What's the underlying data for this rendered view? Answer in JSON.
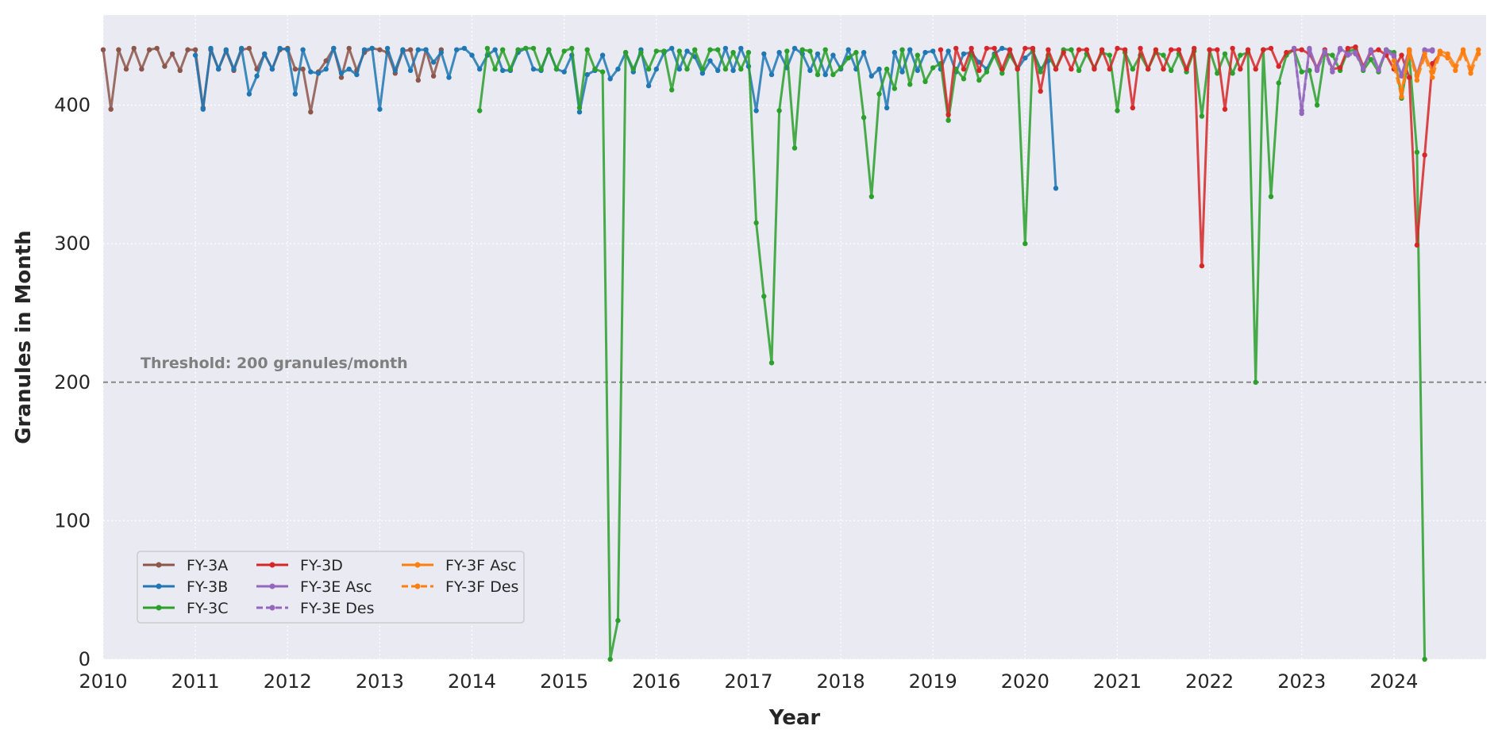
{
  "chart_data": {
    "type": "line",
    "xlabel": "Year",
    "ylabel": "Granules in Month",
    "xlim": [
      2010,
      2025
    ],
    "ylim": [
      0,
      465
    ],
    "x_ticks": [
      "2010",
      "2011",
      "2012",
      "2013",
      "2014",
      "2015",
      "2016",
      "2017",
      "2018",
      "2019",
      "2020",
      "2021",
      "2022",
      "2023",
      "2024"
    ],
    "y_ticks": [
      "0",
      "100",
      "200",
      "300",
      "400"
    ],
    "grid": true,
    "legend_position": "lower-left",
    "threshold": {
      "value": 200,
      "label": "Threshold: 200 granules/month",
      "color": "#888888"
    },
    "series": [
      {
        "name": "FY-3A",
        "color": "#8c564b",
        "dashed": false,
        "start": "2010-01",
        "values": [
          440,
          397,
          440,
          426,
          441,
          426,
          440,
          441,
          428,
          437,
          425,
          440,
          440,
          398,
          440,
          426,
          439,
          425,
          440,
          441,
          426,
          437,
          426,
          440,
          441,
          426,
          426,
          395,
          424,
          432,
          441,
          420,
          441,
          425,
          438,
          441,
          440,
          438,
          423,
          439,
          440,
          418,
          440,
          421,
          440
        ]
      },
      {
        "name": "FY-3B",
        "color": "#1f77b4",
        "dashed": false,
        "start": "2011-01",
        "values": [
          436,
          397,
          441,
          426,
          440,
          426,
          441,
          408,
          421,
          437,
          426,
          441,
          440,
          408,
          440,
          424,
          423,
          426,
          441,
          423,
          426,
          422,
          440,
          441,
          397,
          441,
          425,
          440,
          425,
          440,
          440,
          431,
          438,
          420,
          440,
          441,
          436,
          426,
          436,
          440,
          425,
          425,
          438,
          441,
          426,
          425,
          440,
          426,
          424,
          436,
          395,
          422,
          425,
          436,
          419,
          426,
          438,
          424,
          440,
          414,
          426,
          438,
          441,
          426,
          439,
          435,
          423,
          432,
          425,
          441,
          425,
          441,
          428,
          396,
          437,
          422,
          438,
          427,
          441,
          437,
          425,
          437,
          422,
          436,
          426,
          440,
          426,
          438,
          421,
          426,
          398,
          438,
          424,
          440,
          425,
          438,
          439,
          426,
          439,
          424,
          437,
          438,
          431,
          426,
          437,
          441,
          440,
          426,
          434,
          439,
          426,
          432,
          340
        ]
      },
      {
        "name": "FY-3C",
        "color": "#2ca02c",
        "dashed": false,
        "start": "2014-02",
        "values": [
          396,
          441,
          426,
          440,
          426,
          440,
          441,
          441,
          426,
          440,
          426,
          439,
          441,
          398,
          440,
          426,
          424,
          0,
          28,
          438,
          426,
          438,
          426,
          439,
          439,
          411,
          439,
          426,
          440,
          426,
          440,
          440,
          426,
          438,
          426,
          438,
          315,
          262,
          214,
          396,
          439,
          369,
          440,
          439,
          422,
          440,
          422,
          427,
          434,
          438,
          391,
          334,
          408,
          426,
          412,
          440,
          415,
          436,
          417,
          427,
          430,
          389,
          426,
          419,
          436,
          418,
          424,
          436,
          423,
          436,
          427,
          300,
          439,
          424,
          436,
          426,
          440,
          440,
          425,
          437,
          427,
          438,
          436,
          396,
          438,
          426,
          436,
          426,
          438,
          436,
          425,
          437,
          424,
          439,
          392,
          440,
          423,
          437,
          423,
          436,
          438,
          200,
          440,
          334,
          416,
          436,
          440,
          424,
          425,
          400,
          437,
          436,
          425,
          439,
          440,
          425,
          433,
          424,
          440,
          438,
          405,
          436,
          366,
          0
        ]
      },
      {
        "name": "FY-3D",
        "color": "#d62728",
        "dashed": false,
        "start": "2019-02",
        "values": [
          440,
          393,
          441,
          426,
          441,
          425,
          441,
          441,
          426,
          440,
          426,
          441,
          441,
          410,
          440,
          426,
          438,
          426,
          440,
          440,
          426,
          440,
          426,
          441,
          440,
          398,
          441,
          426,
          440,
          426,
          440,
          440,
          426,
          441,
          284,
          440,
          440,
          397,
          441,
          426,
          440,
          426,
          440,
          441,
          428,
          438,
          440,
          440,
          437,
          427,
          440,
          426,
          427,
          441,
          442,
          428,
          438,
          440,
          436,
          426,
          436,
          420,
          299,
          364,
          430,
          437
        ]
      },
      {
        "name": "FY-3E Asc",
        "color": "#9467bd",
        "dashed": false,
        "start": "2022-12",
        "values": [
          441,
          396,
          441,
          426,
          439,
          426,
          441,
          437,
          438,
          427,
          440,
          426,
          440,
          436,
          422,
          440,
          422,
          440,
          440
        ]
      },
      {
        "name": "FY-3E Des",
        "color": "#9467bd",
        "dashed": true,
        "start": "2022-12",
        "values": [
          441,
          394,
          440,
          425,
          438,
          424,
          440,
          436,
          437,
          426,
          439,
          425,
          439,
          435,
          421,
          439,
          421,
          439,
          439
        ]
      },
      {
        "name": "FY-3F Asc",
        "color": "#ff7f0e",
        "dashed": false,
        "start": "2024-01",
        "values": [
          432,
          410,
          440,
          421,
          437,
          424,
          439,
          437,
          428,
          440,
          426,
          440
        ]
      },
      {
        "name": "FY-3F Des",
        "color": "#ff7f0e",
        "dashed": true,
        "start": "2024-01",
        "values": [
          428,
          406,
          438,
          418,
          435,
          420,
          437,
          434,
          425,
          438,
          423,
          437
        ]
      }
    ]
  }
}
